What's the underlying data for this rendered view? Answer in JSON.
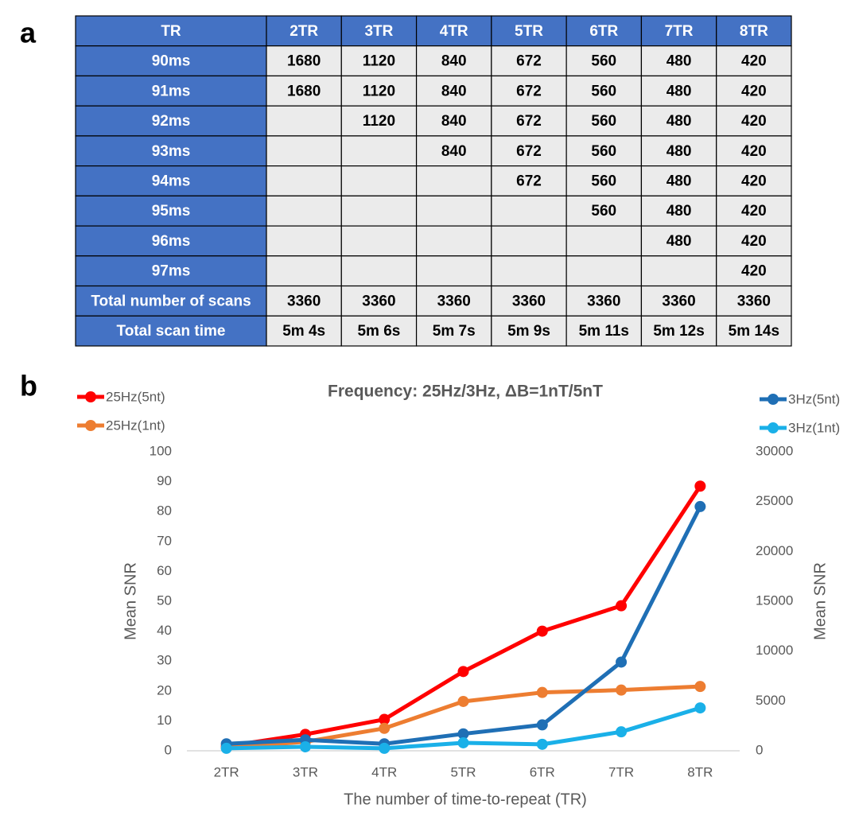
{
  "panel_labels": [
    "a",
    "b"
  ],
  "table": {
    "header": [
      "TR",
      "2TR",
      "3TR",
      "4TR",
      "5TR",
      "6TR",
      "7TR",
      "8TR"
    ],
    "rows": [
      {
        "label": "90ms",
        "cells": [
          1680,
          1120,
          840,
          672,
          560,
          480,
          420
        ]
      },
      {
        "label": "91ms",
        "cells": [
          1680,
          1120,
          840,
          672,
          560,
          480,
          420
        ]
      },
      {
        "label": "92ms",
        "cells": [
          null,
          1120,
          840,
          672,
          560,
          480,
          420
        ]
      },
      {
        "label": "93ms",
        "cells": [
          null,
          null,
          840,
          672,
          560,
          480,
          420
        ]
      },
      {
        "label": "94ms",
        "cells": [
          null,
          null,
          null,
          672,
          560,
          480,
          420
        ]
      },
      {
        "label": "95ms",
        "cells": [
          null,
          null,
          null,
          null,
          560,
          480,
          420
        ]
      },
      {
        "label": "96ms",
        "cells": [
          null,
          null,
          null,
          null,
          null,
          480,
          420
        ]
      },
      {
        "label": "97ms",
        "cells": [
          null,
          null,
          null,
          null,
          null,
          null,
          420
        ]
      },
      {
        "label": "Total number of scans",
        "cells": [
          3360,
          3360,
          3360,
          3360,
          3360,
          3360,
          3360
        ]
      },
      {
        "label": "Total scan time",
        "cells": [
          "5m 4s",
          "5m 6s",
          "5m 7s",
          "5m 9s",
          "5m 11s",
          "5m 12s",
          "5m 14s"
        ]
      }
    ]
  },
  "chart_data": {
    "type": "line",
    "title": "Frequency: 25Hz/3Hz, ΔB=1nT/5nT",
    "xlabel": "The number of time-to-repeat (TR)",
    "ylabel": "Mean SNR",
    "y2label": "Mean SNR",
    "categories": [
      "2TR",
      "3TR",
      "4TR",
      "5TR",
      "6TR",
      "7TR",
      "8TR"
    ],
    "ylim": [
      0,
      100
    ],
    "yticks": [
      0,
      10,
      20,
      30,
      40,
      50,
      60,
      70,
      80,
      90,
      100
    ],
    "y2lim": [
      0,
      30000
    ],
    "y2ticks": [
      0,
      5000,
      10000,
      15000,
      20000,
      25000,
      30000
    ],
    "grid": false,
    "series": [
      {
        "name": "25Hz(5nt)",
        "color": "#ff0000",
        "axis": "y",
        "values": [
          1.5,
          5.5,
          10.5,
          26.5,
          40,
          48.5,
          88.5
        ]
      },
      {
        "name": "25Hz(1nt)",
        "color": "#ed7d31",
        "axis": "y",
        "values": [
          1,
          3,
          7.5,
          16.5,
          19.5,
          20.3,
          21.5
        ]
      },
      {
        "name": "3Hz(5nt)",
        "color": "#1f6fb5",
        "axis": "y2",
        "values": [
          700,
          1100,
          700,
          1700,
          2600,
          8900,
          24500
        ]
      },
      {
        "name": "3Hz(1nt)",
        "color": "#1ab0e8",
        "axis": "y2",
        "values": [
          250,
          400,
          250,
          800,
          650,
          1900,
          4300
        ]
      }
    ]
  }
}
